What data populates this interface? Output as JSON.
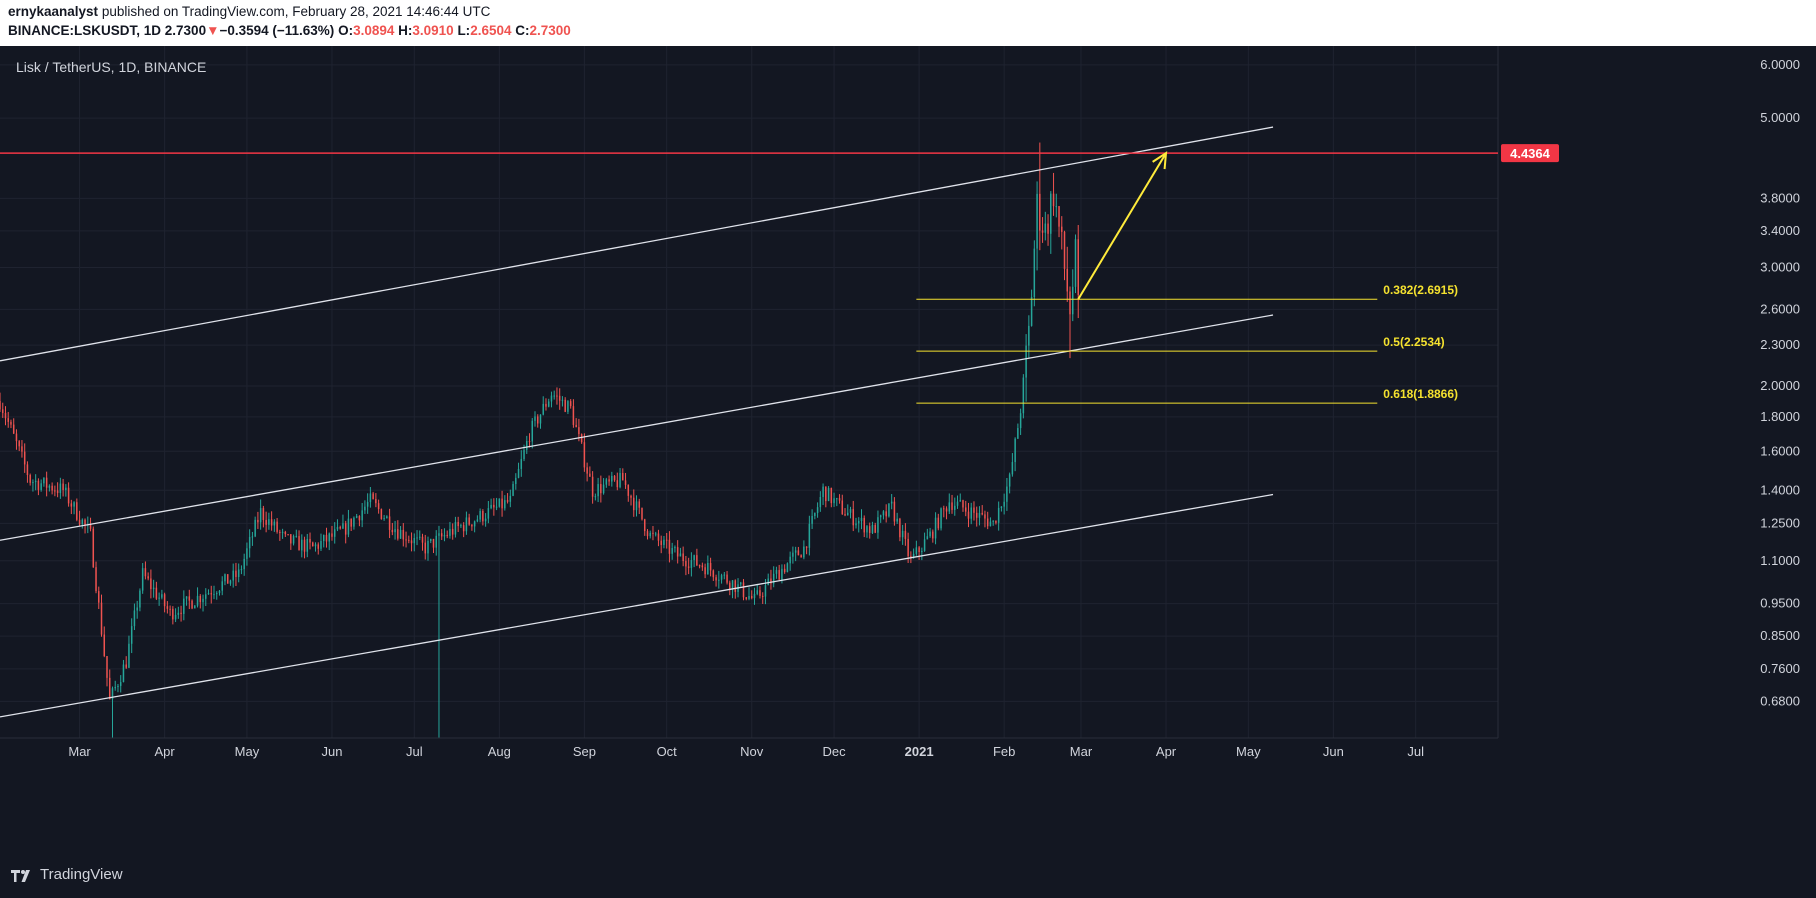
{
  "header": {
    "author": "ernykaanalyst",
    "published": "published on TradingView.com, February 28, 2021 14:46:44 UTC",
    "symbol": "BINANCE:LSKUSDT, 1D",
    "last": "2.7300",
    "arrow": "▼",
    "change": "−0.3594 (−11.63%)",
    "o_label": "O:",
    "o_value": "3.0894",
    "h_label": "H:",
    "h_value": "3.0910",
    "l_label": "L:",
    "l_value": "2.6504",
    "c_label": "C:",
    "c_value": "2.7300"
  },
  "instrument_label": "Lisk / TetherUS, 1D, BINANCE",
  "branding": {
    "logo_text": "TradingView",
    "logo_icon": "tradingview-logo-icon"
  },
  "colors": {
    "background": "#131722",
    "grid": "#1f2330",
    "text": "#d1d4dc",
    "up": "#26a69a",
    "down": "#ef5350",
    "resistance": "#f23645",
    "fib": "#f5e22f",
    "channel": "#e0e3eb",
    "arrow": "#ffeb3b"
  },
  "chart_data": {
    "type": "candlestick",
    "x_axis": {
      "type": "date",
      "range": [
        "2020-02-01",
        "2021-07-31"
      ],
      "ticks": [
        {
          "label": "Mar",
          "date": "2020-03-01",
          "bold": false
        },
        {
          "label": "Apr",
          "date": "2020-04-01",
          "bold": false
        },
        {
          "label": "May",
          "date": "2020-05-01",
          "bold": false
        },
        {
          "label": "Jun",
          "date": "2020-06-01",
          "bold": false
        },
        {
          "label": "Jul",
          "date": "2020-07-01",
          "bold": false
        },
        {
          "label": "Aug",
          "date": "2020-08-01",
          "bold": false
        },
        {
          "label": "Sep",
          "date": "2020-09-01",
          "bold": false
        },
        {
          "label": "Oct",
          "date": "2020-10-01",
          "bold": false
        },
        {
          "label": "Nov",
          "date": "2020-11-01",
          "bold": false
        },
        {
          "label": "Dec",
          "date": "2020-12-01",
          "bold": false
        },
        {
          "label": "2021",
          "date": "2021-01-01",
          "bold": true
        },
        {
          "label": "Feb",
          "date": "2021-02-01",
          "bold": false
        },
        {
          "label": "Mar",
          "date": "2021-03-01",
          "bold": false
        },
        {
          "label": "Apr",
          "date": "2021-04-01",
          "bold": false
        },
        {
          "label": "May",
          "date": "2021-05-01",
          "bold": false
        },
        {
          "label": "Jun",
          "date": "2021-06-01",
          "bold": false
        },
        {
          "label": "Jul",
          "date": "2021-07-01",
          "bold": false
        }
      ]
    },
    "y_axis": {
      "scale": "log",
      "range": [
        0.6,
        6.4
      ],
      "ticks": [
        "6.0000",
        "5.0000",
        "3.8000",
        "3.4000",
        "3.0000",
        "2.6000",
        "2.3000",
        "2.0000",
        "1.8000",
        "1.6000",
        "1.4000",
        "1.2500",
        "1.1000",
        "0.9500",
        "0.8500",
        "0.7600",
        "0.6800"
      ]
    },
    "grid": true,
    "price_path": [
      [
        "2020-02-01",
        1.9
      ],
      [
        "2020-02-12",
        1.45
      ],
      [
        "2020-02-24",
        1.4
      ],
      [
        "2020-03-05",
        1.2
      ],
      [
        "2020-03-12",
        0.68
      ],
      [
        "2020-03-18",
        0.78
      ],
      [
        "2020-03-24",
        1.05
      ],
      [
        "2020-04-03",
        0.92
      ],
      [
        "2020-04-15",
        0.98
      ],
      [
        "2020-04-28",
        1.05
      ],
      [
        "2020-05-06",
        1.3
      ],
      [
        "2020-05-15",
        1.18
      ],
      [
        "2020-05-25",
        1.15
      ],
      [
        "2020-06-05",
        1.22
      ],
      [
        "2020-06-15",
        1.35
      ],
      [
        "2020-06-25",
        1.22
      ],
      [
        "2020-07-05",
        1.15
      ],
      [
        "2020-07-15",
        1.22
      ],
      [
        "2020-07-25",
        1.28
      ],
      [
        "2020-08-05",
        1.35
      ],
      [
        "2020-08-12",
        1.7
      ],
      [
        "2020-08-20",
        1.95
      ],
      [
        "2020-08-27",
        1.85
      ],
      [
        "2020-09-04",
        1.4
      ],
      [
        "2020-09-15",
        1.45
      ],
      [
        "2020-09-25",
        1.2
      ],
      [
        "2020-10-05",
        1.12
      ],
      [
        "2020-10-15",
        1.08
      ],
      [
        "2020-10-25",
        1.02
      ],
      [
        "2020-11-02",
        0.96
      ],
      [
        "2020-11-10",
        1.05
      ],
      [
        "2020-11-20",
        1.15
      ],
      [
        "2020-11-27",
        1.4
      ],
      [
        "2020-12-05",
        1.3
      ],
      [
        "2020-12-15",
        1.22
      ],
      [
        "2020-12-22",
        1.32
      ],
      [
        "2020-12-29",
        1.1
      ],
      [
        "2021-01-05",
        1.2
      ],
      [
        "2021-01-12",
        1.35
      ],
      [
        "2021-01-20",
        1.3
      ],
      [
        "2021-01-28",
        1.25
      ],
      [
        "2021-02-03",
        1.45
      ],
      [
        "2021-02-07",
        1.85
      ],
      [
        "2021-02-10",
        2.4
      ],
      [
        "2021-02-13",
        3.7
      ],
      [
        "2021-02-16",
        3.4
      ],
      [
        "2021-02-19",
        3.9
      ],
      [
        "2021-02-22",
        3.2
      ],
      [
        "2021-02-25",
        2.6
      ],
      [
        "2021-02-27",
        3.09
      ],
      [
        "2021-02-28",
        2.73
      ]
    ],
    "resistance": {
      "value": 4.4364,
      "label": "4.4364"
    },
    "fib_levels": [
      {
        "ratio": "0.382",
        "value": 2.6915,
        "label": "0.382(2.6915)"
      },
      {
        "ratio": "0.5",
        "value": 2.2534,
        "label": "0.5(2.2534)"
      },
      {
        "ratio": "0.618",
        "value": 1.8866,
        "label": "0.618(1.8866)"
      }
    ],
    "fib_range": [
      "2020-12-31",
      "2021-06-17"
    ],
    "channel": {
      "start": "2020-02-01",
      "end": "2021-05-10",
      "upper": [
        2.18,
        4.85
      ],
      "middle": [
        1.18,
        2.55
      ],
      "lower": [
        0.645,
        1.38
      ]
    },
    "projection_arrow": {
      "from": [
        "2021-02-28",
        2.6915
      ],
      "to": [
        "2021-04-01",
        4.4364
      ]
    }
  }
}
